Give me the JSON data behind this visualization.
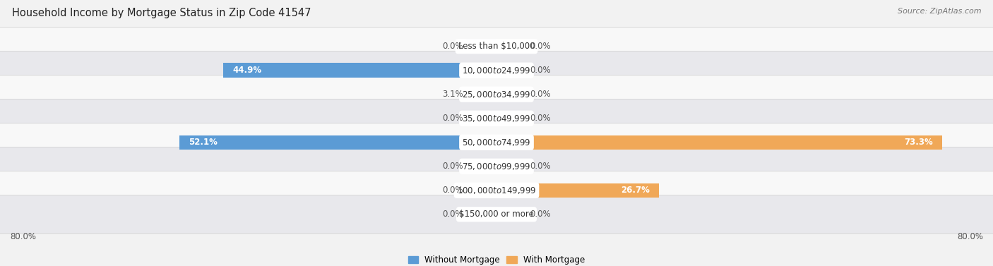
{
  "title": "Household Income by Mortgage Status in Zip Code 41547",
  "source": "Source: ZipAtlas.com",
  "categories": [
    "Less than $10,000",
    "$10,000 to $24,999",
    "$25,000 to $34,999",
    "$35,000 to $49,999",
    "$50,000 to $74,999",
    "$75,000 to $99,999",
    "$100,000 to $149,999",
    "$150,000 or more"
  ],
  "without_mortgage": [
    0.0,
    44.9,
    3.1,
    0.0,
    52.1,
    0.0,
    0.0,
    0.0
  ],
  "with_mortgage": [
    0.0,
    0.0,
    0.0,
    0.0,
    73.3,
    0.0,
    26.7,
    0.0
  ],
  "without_mortgage_color_full": "#5b9bd5",
  "without_mortgage_color_light": "#aec6e8",
  "with_mortgage_color_full": "#f0a858",
  "with_mortgage_color_light": "#f5cfa0",
  "bg_color": "#f2f2f2",
  "row_bg_light": "#f8f8f8",
  "row_bg_dark": "#e8e8ec",
  "axis_limit": 80.0,
  "min_stub": 5.0,
  "label_fontsize": 8.5,
  "cat_fontsize": 8.5,
  "title_fontsize": 10.5,
  "source_fontsize": 8,
  "legend_fontsize": 8.5,
  "bar_height": 0.6
}
